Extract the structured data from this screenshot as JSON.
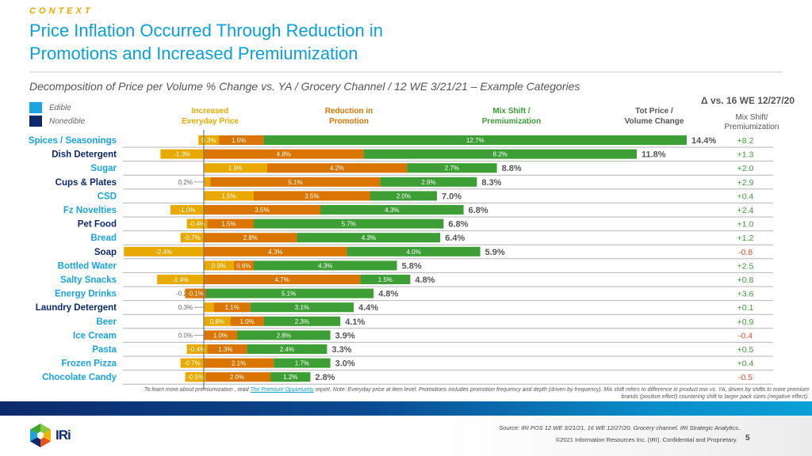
{
  "header": {
    "context_label": "CONTEXT",
    "title_line1": "Price Inflation Occurred Through Reduction in",
    "title_line2": "Promotions and Increased Premiumization",
    "subtitle": "Decomposition of Price per Volume % Change vs. YA / Grocery Channel / 12 WE 3/21/21 – Example Categories"
  },
  "legend": [
    {
      "label": "Edible",
      "color": "#1aa3df"
    },
    {
      "label": "Nonedible",
      "color": "#0c2a6b"
    }
  ],
  "column_headers": {
    "everyday_line1": "Increased",
    "everyday_line2": "Everyday Price",
    "promo_line1": "Reduction in",
    "promo_line2": "Promotion",
    "mix_line1": "Mix Shift /",
    "mix_line2": "Premiumization",
    "total_line1": "Tot Price /",
    "total_line2": "Volume Change",
    "delta_title": "Δ vs. 16 WE 12/27/20",
    "delta_sub_line1": "Mix Shift/",
    "delta_sub_line2": "Premiumization"
  },
  "colors": {
    "everyday": "#e8aa00",
    "promo": "#d97500",
    "mix": "#3c9e35",
    "edible_label": "#1aa3df",
    "nonedible_label": "#0c2a6b",
    "delta_pos": "#3c9e35",
    "delta_neg": "#e0502a"
  },
  "chart_data": {
    "type": "bar",
    "stacked": true,
    "orientation": "horizontal",
    "title": "Decomposition of Price per Volume % Change vs. YA / Grocery Channel / 12 WE 3/21/21 – Example Categories",
    "xlabel": "",
    "ylabel": "",
    "categories": [
      "Spices / Seasonings",
      "Dish Detergent",
      "Sugar",
      "Cups & Plates",
      "CSD",
      "Fz Novelties",
      "Pet Food",
      "Bread",
      "Soap",
      "Bottled Water",
      "Salty Snacks",
      "Energy Drinks",
      "Laundry Detergent",
      "Beer",
      "Ice Cream",
      "Pasta",
      "Frozen Pizza",
      "Chocolate Candy"
    ],
    "category_type": [
      "Edible",
      "Nonedible",
      "Edible",
      "Nonedible",
      "Edible",
      "Edible",
      "Nonedible",
      "Edible",
      "Nonedible",
      "Edible",
      "Edible",
      "Edible",
      "Nonedible",
      "Edible",
      "Edible",
      "Edible",
      "Edible",
      "Edible"
    ],
    "series": [
      {
        "name": "Increased Everyday Price",
        "values": [
          0.3,
          -1.3,
          1.9,
          0.2,
          1.5,
          -1.0,
          -0.4,
          -0.7,
          -2.4,
          0.9,
          -1.4,
          -0.2,
          0.3,
          0.8,
          0.0,
          -0.4,
          -0.7,
          -0.5
        ]
      },
      {
        "name": "Reduction in Promotion",
        "values": [
          1.5,
          4.8,
          4.2,
          5.1,
          3.5,
          3.5,
          1.5,
          2.8,
          4.3,
          0.6,
          4.7,
          -0.1,
          1.1,
          1.0,
          1.0,
          1.3,
          2.1,
          2.0
        ]
      },
      {
        "name": "Mix Shift / Premiumization",
        "values": [
          12.7,
          8.2,
          2.7,
          2.9,
          2.0,
          4.3,
          5.7,
          4.3,
          4.0,
          4.3,
          1.5,
          5.1,
          3.1,
          2.3,
          2.8,
          2.4,
          1.7,
          1.2
        ]
      }
    ],
    "totals": [
      14.4,
      11.8,
      8.8,
      8.3,
      7.0,
      6.8,
      6.8,
      6.4,
      5.9,
      5.8,
      4.8,
      4.8,
      4.4,
      4.1,
      3.9,
      3.3,
      3.0,
      2.8
    ],
    "total_label": "Tot Price / Volume Change",
    "delta_vs_16we": {
      "label": "Δ vs. 16 WE 12/27/20 Mix Shift/Premiumization",
      "values": [
        "+8.2",
        "+1.3",
        "+2.0",
        "+2.9",
        "+0.4",
        "+2.4",
        "+1.0",
        "+1.2",
        "-0.8",
        "+2.5",
        "+0.8",
        "+3.6",
        "+0.1",
        "+0.9",
        "-0.4",
        "+0.5",
        "+0.4",
        "-0.5"
      ]
    },
    "xlim": [
      -2.5,
      14.5
    ],
    "grid": false,
    "legend_position": "top-left"
  },
  "footnote": {
    "prefix": "To learn more about premiumization , read ",
    "link": "The Premium Opportunity",
    "suffix": " report. Note: Everyday price at item level. Promotions includes promotion frequency and depth (driven by frequency). Mix shift refers to difference in product mix vs. YA, driven by shifts to more premium brands (positive effect) countering shift to larger pack sizes (negative effect)."
  },
  "footer": {
    "source": "Source: IRI POS 12 WE 3/21/21, 16 WE 12/27/20, Grocery channel. IRI Strategic Analytics..",
    "copyright": "©2021 Information Resources Inc. (IRI). Confidential and Proprietary.",
    "page_number": "5",
    "logo_text": "IRi"
  }
}
